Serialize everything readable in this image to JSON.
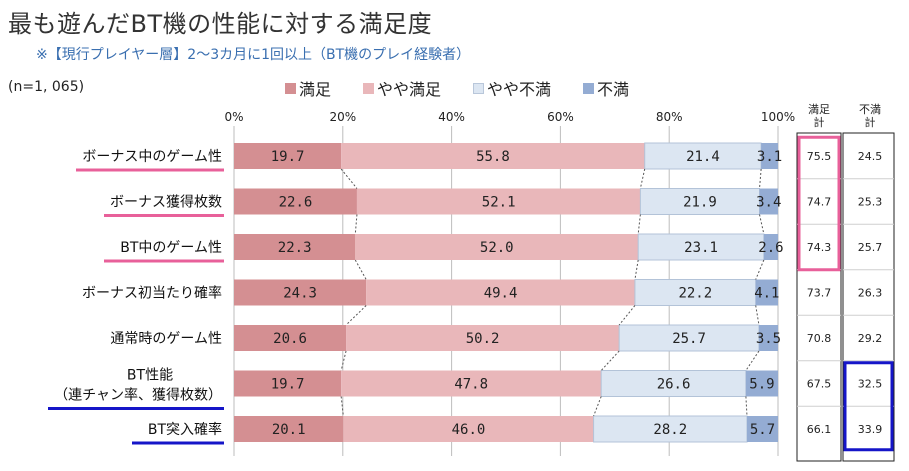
{
  "title": "最も遊んだBT機の性能に対する満足度",
  "subtitle": "※【現行プレイヤー層】2～3カ月に1回以上（BT機のプレイ経験者）",
  "sample_size": "(n=1, 065)",
  "colors": {
    "satisfied": "#d48f92",
    "somewhat_satisfied": "#e9b7ba",
    "somewhat_dissatisfied": "#dce6f2",
    "dissatisfied": "#94acd3",
    "pink_highlight": "#e8609a",
    "blue_highlight": "#1515c8"
  },
  "chart_data": {
    "type": "bar",
    "orientation": "horizontal-stacked-100",
    "categories": [
      [
        "ボーナス中のゲーム性"
      ],
      [
        "ボーナス獲得枚数"
      ],
      [
        "BT中のゲーム性"
      ],
      [
        "ボーナス初当たり確率"
      ],
      [
        "通常時のゲーム性"
      ],
      [
        "BT性能",
        "（連チャン率、獲得枚数）"
      ],
      [
        "BT突入確率"
      ]
    ],
    "series": [
      {
        "name": "満足",
        "values": [
          "19.7",
          "22.6",
          "22.3",
          "24.3",
          "20.6",
          "19.7",
          "20.1"
        ]
      },
      {
        "name": "やや満足",
        "values": [
          "55.8",
          "52.1",
          "52.0",
          "49.4",
          "50.2",
          "47.8",
          "46.0"
        ]
      },
      {
        "name": "やや不満",
        "values": [
          "21.4",
          "21.9",
          "23.1",
          "22.2",
          "25.7",
          "26.6",
          "28.2"
        ]
      },
      {
        "name": "不満",
        "values": [
          "3.1",
          "3.4",
          "2.6",
          "4.1",
          "3.5",
          "5.9",
          "5.7"
        ]
      }
    ],
    "x_ticks": [
      "0%",
      "20%",
      "40%",
      "60%",
      "80%",
      "100%"
    ],
    "xlim": [
      0,
      100
    ],
    "summary_headers": [
      [
        "満足",
        "計"
      ],
      [
        "不満",
        "計"
      ]
    ],
    "satisfied_total": [
      "75.5",
      "74.7",
      "74.3",
      "73.7",
      "70.8",
      "67.5",
      "66.1"
    ],
    "dissatisfied_total": [
      "24.5",
      "25.3",
      "25.7",
      "26.3",
      "29.2",
      "32.5",
      "33.9"
    ],
    "underline_colors": [
      "pink",
      "pink",
      "pink",
      "none",
      "none",
      "blue",
      "blue"
    ],
    "legend_position": "top"
  }
}
